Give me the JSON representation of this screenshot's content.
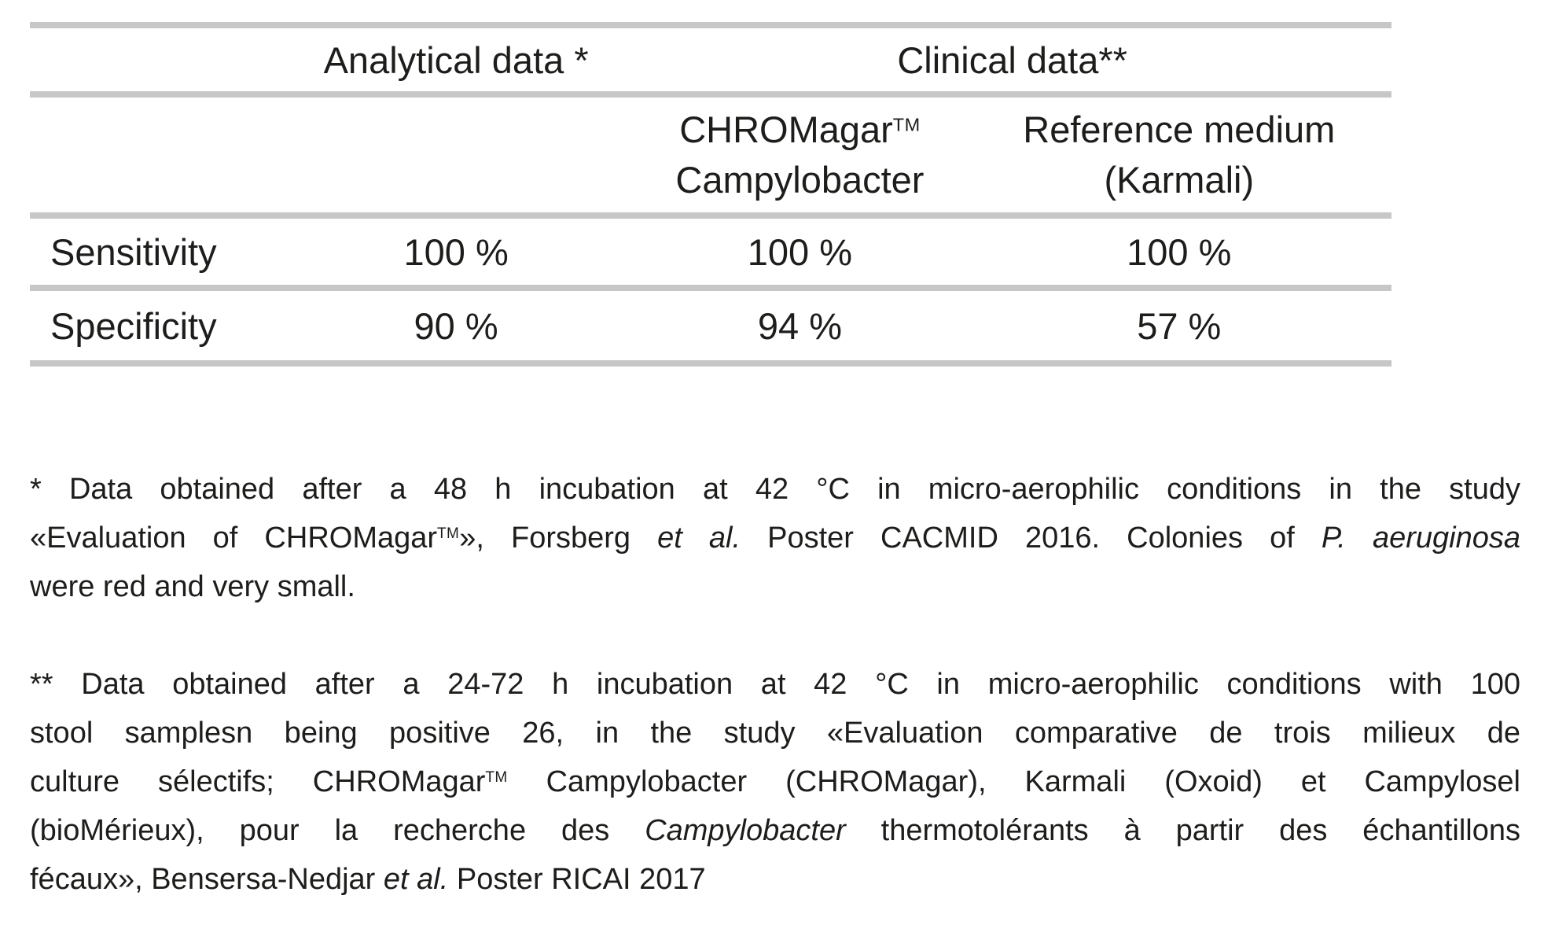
{
  "colors": {
    "rule": "#c7c7c7",
    "text": "#1d1d1b",
    "background": "#ffffff"
  },
  "table": {
    "group_headers": {
      "analytical": "Analytical data *",
      "clinical": "Clinical data**"
    },
    "column_headers": {
      "chromagar_line1": [
        {
          "t": "CHROMagar"
        },
        {
          "t": "TM",
          "s": "sup"
        }
      ],
      "chromagar_line2": "Campylobacter",
      "reference_line1": "Reference medium",
      "reference_line2": "(Karmali)"
    },
    "rows": [
      {
        "label": "Sensitivity",
        "analytical": "100 %",
        "chromagar": "100 %",
        "reference": "100 %"
      },
      {
        "label": "Specificity",
        "analytical": "90 %",
        "chromagar": "94 %",
        "reference": "57 %"
      }
    ]
  },
  "footnotes": {
    "first": {
      "lines": {
        "0": [
          {
            "t": "* Data obtained after a 48 h incubation at 42 °C in micro-aerophilic conditions in the study"
          }
        ],
        "1": [
          {
            "t": "«Evaluation of CHROMagar"
          },
          {
            "t": "TM",
            "s": "sup"
          },
          {
            "t": "», Forsberg "
          },
          {
            "t": "et al.",
            "s": "i"
          },
          {
            "t": " Poster CACMID 2016. Colonies of "
          },
          {
            "t": "P. aeruginosa",
            "s": "i"
          }
        ],
        "2": [
          {
            "t": "were red and very small."
          }
        ]
      }
    },
    "second": {
      "lines": {
        "0": [
          {
            "t": "** Data obtained after a 24-72 h incubation at 42 °C in micro-aerophilic conditions with 100"
          }
        ],
        "1": [
          {
            "t": "stool samplesn being positive 26, in the study «Evaluation comparative de trois milieux de"
          }
        ],
        "2": [
          {
            "t": "culture sélectifs; CHROMagar"
          },
          {
            "t": "TM",
            "s": "sup"
          },
          {
            "t": " Campylobacter (CHROMagar), Karmali (Oxoid) et Campylosel"
          }
        ],
        "3": [
          {
            "t": "(bioMérieux), pour la recherche des "
          },
          {
            "t": "Campylobacter",
            "s": "i"
          },
          {
            "t": " thermotolérants à partir des échantillons"
          }
        ],
        "4": [
          {
            "t": "fécaux», Bensersa-Nedjar "
          },
          {
            "t": "et al.",
            "s": "i"
          },
          {
            "t": " Poster RICAI 2017"
          }
        ]
      }
    }
  }
}
